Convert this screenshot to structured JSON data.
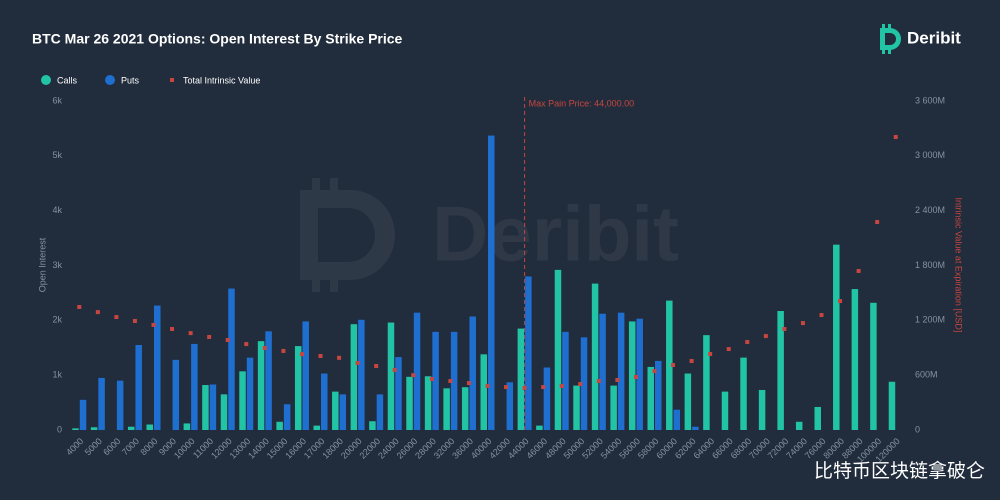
{
  "brand": "Deribit",
  "source_watermark": "比特币区块链拿破仑",
  "chart_data": {
    "type": "bar",
    "title": "BTC Mar 26 2021 Options: Open Interest By Strike Price",
    "y_label": "Open Interest",
    "y2_label": "Intrinsic Value at Expiration [USD]",
    "legend": "top-left",
    "categories": [
      "4000",
      "5000",
      "6000",
      "7000",
      "8000",
      "9000",
      "10000",
      "11000",
      "12000",
      "13000",
      "14000",
      "15000",
      "16000",
      "17000",
      "18000",
      "20000",
      "22000",
      "24000",
      "26000",
      "28000",
      "32000",
      "36000",
      "40000",
      "42000",
      "44000",
      "46000",
      "48000",
      "50000",
      "52000",
      "54000",
      "56000",
      "58000",
      "60000",
      "62000",
      "64000",
      "66000",
      "68000",
      "70000",
      "72000",
      "74000",
      "76000",
      "80000",
      "88000",
      "100000",
      "120000"
    ],
    "series": [
      {
        "name": "Calls",
        "color": "#22c4a6",
        "values": [
          30,
          50,
          0,
          60,
          100,
          0,
          120,
          820,
          650,
          1070,
          1620,
          150,
          1530,
          80,
          700,
          1930,
          160,
          1960,
          970,
          980,
          760,
          780,
          1380,
          0,
          1850,
          80,
          2920,
          810,
          2670,
          810,
          1980,
          1150,
          2360,
          1030,
          1730,
          700,
          1320,
          730,
          2170,
          150,
          420,
          3380,
          2570,
          2320,
          880
        ]
      },
      {
        "name": "Puts",
        "color": "#1e6fd0",
        "values": [
          550,
          950,
          900,
          1550,
          2270,
          1280,
          1570,
          830,
          2580,
          1320,
          1800,
          470,
          1980,
          1030,
          650,
          2010,
          650,
          1330,
          2140,
          1790,
          1790,
          2070,
          5370,
          870,
          2800,
          1140,
          1790,
          1690,
          2120,
          2140,
          2030,
          1260,
          370,
          60,
          0,
          0,
          0,
          0,
          0,
          0,
          0,
          0,
          0,
          0,
          0
        ]
      },
      {
        "name": "Total Intrinsic Value",
        "color": "#c8463f",
        "type": "scatter",
        "axis": "y2",
        "values": [
          1346000000,
          1290000000,
          1236000000,
          1193000000,
          1150000000,
          1105000000,
          1060000000,
          1018000000,
          985000000,
          940000000,
          897000000,
          865000000,
          830000000,
          810000000,
          790000000,
          733000000,
          700000000,
          657000000,
          600000000,
          558000000,
          536000000,
          514000000,
          481000000,
          470000000,
          460000000,
          470000000,
          481000000,
          503000000,
          536000000,
          547000000,
          580000000,
          645000000,
          711000000,
          755000000,
          832000000,
          886000000,
          963000000,
          1028000000,
          1105000000,
          1170000000,
          1258000000,
          1411000000,
          1740000000,
          2276000000,
          3206000000
        ]
      }
    ],
    "ylim": [
      0,
      6000
    ],
    "yticks": [
      0,
      {
        "value": 1000,
        "label": "1k"
      },
      {
        "value": 2000,
        "label": "2k"
      },
      {
        "value": 3000,
        "label": "3k"
      },
      {
        "value": 4000,
        "label": "4k"
      },
      {
        "value": 5000,
        "label": "5k"
      },
      {
        "value": 6000,
        "label": "6k"
      }
    ],
    "y2lim": [
      0,
      3600000000
    ],
    "y2ticks": [
      0,
      {
        "value": 600000000,
        "label": "600M"
      },
      {
        "value": 1200000000,
        "label": "1 200M"
      },
      {
        "value": 1800000000,
        "label": "1 800M"
      },
      {
        "value": 2400000000,
        "label": "2 400M"
      },
      {
        "value": 3000000000,
        "label": "3 000M"
      },
      {
        "value": 3600000000,
        "label": "3 600M"
      }
    ],
    "annotations": [
      {
        "text": "Max Pain Price: 44,000.00",
        "x": "44000",
        "color": "#c8463f"
      }
    ]
  }
}
